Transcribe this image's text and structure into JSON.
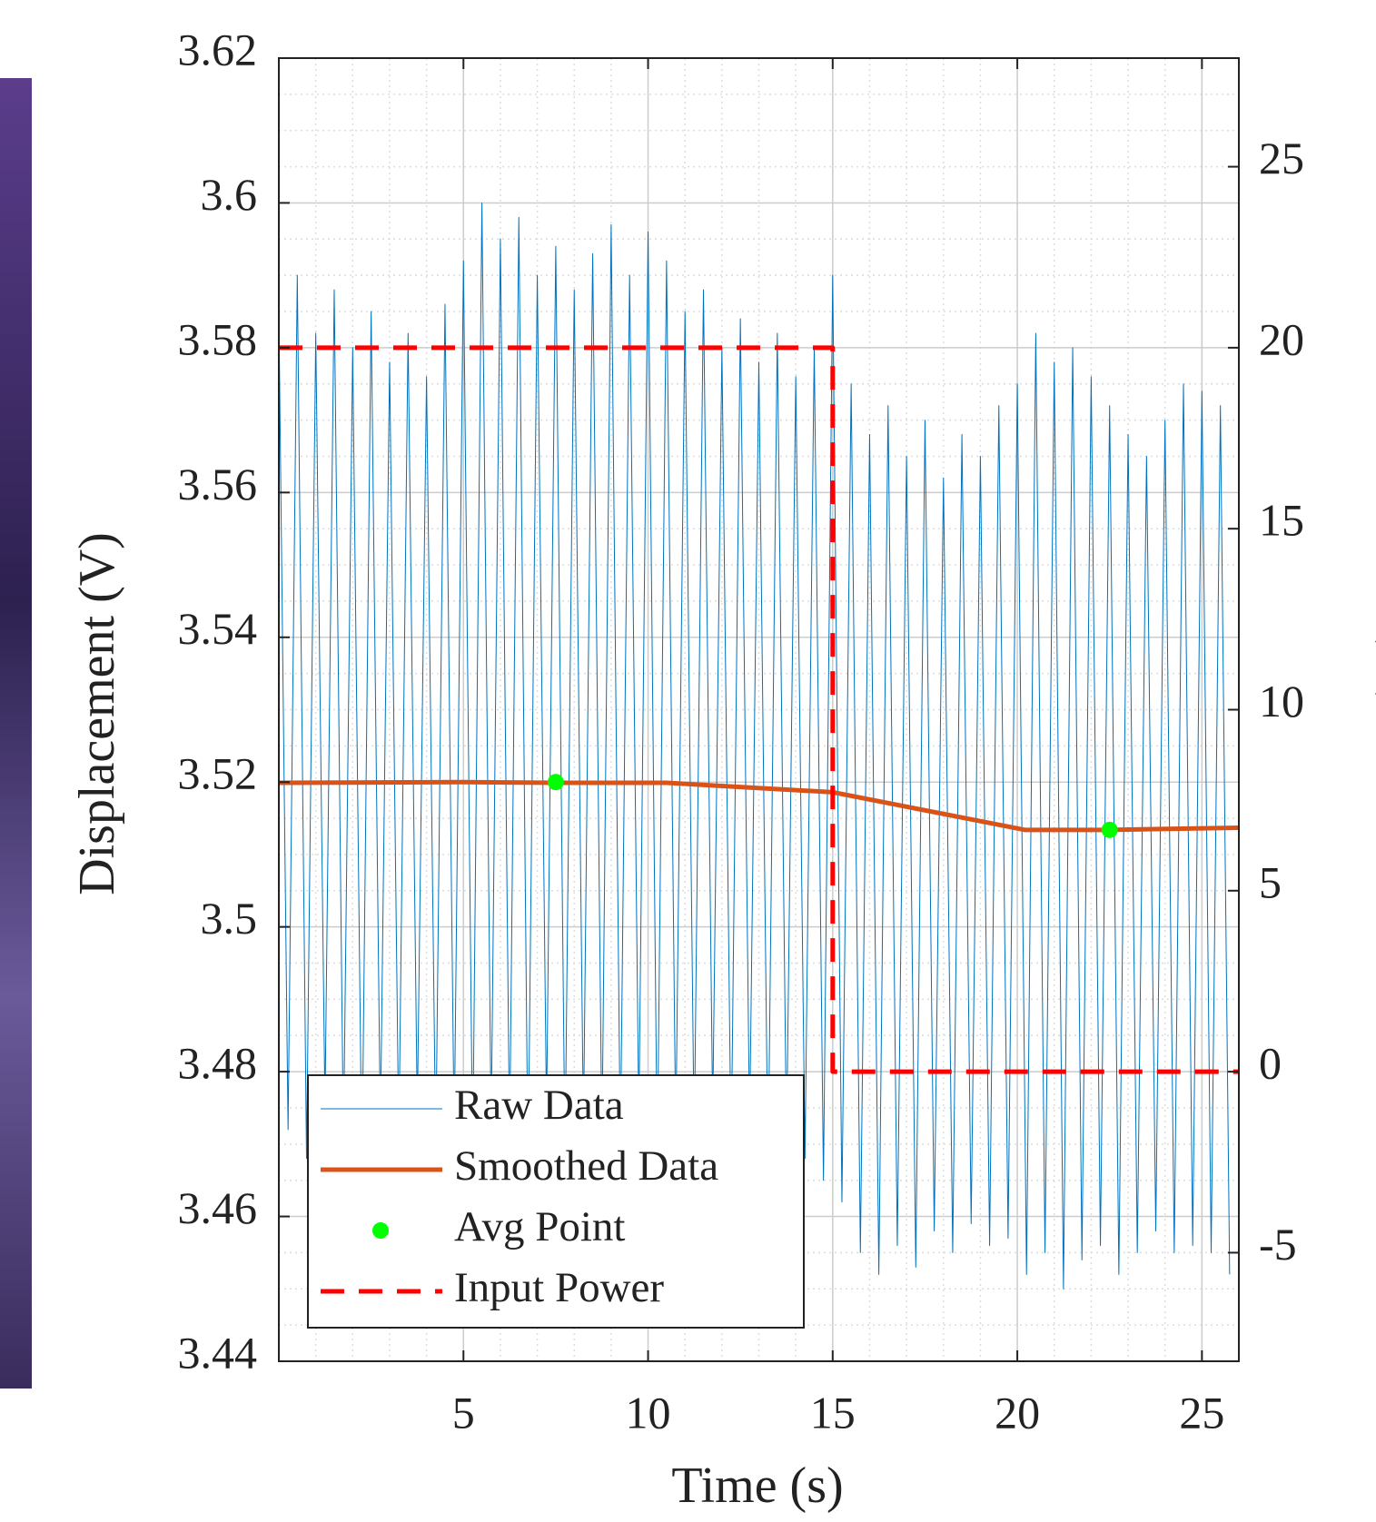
{
  "chart_data": {
    "type": "line",
    "xlabel": "Time (s)",
    "ylabel": "Displacement (V)",
    "y2label": "Input Power (W)",
    "xlim": [
      0,
      26
    ],
    "xticks": [
      5,
      10,
      15,
      20,
      25
    ],
    "ylim": [
      3.44,
      3.62
    ],
    "yticks": [
      3.44,
      3.46,
      3.48,
      3.5,
      3.52,
      3.54,
      3.56,
      3.58,
      3.6,
      3.62
    ],
    "y2lim": [
      -8,
      28
    ],
    "y2ticks": [
      -5,
      0,
      5,
      10,
      15,
      20,
      25
    ],
    "grid": true,
    "minor_grid": true,
    "legend": "lower left",
    "series": [
      {
        "name": "Raw Data",
        "color": "#0072bd",
        "line_width": 1,
        "x": [
          0,
          0.25,
          0.5,
          0.75,
          1,
          1.25,
          1.5,
          1.75,
          2,
          2.25,
          2.5,
          2.75,
          3,
          3.25,
          3.5,
          3.75,
          4,
          4.25,
          4.5,
          4.75,
          5,
          5.25,
          5.5,
          5.75,
          6,
          6.25,
          6.5,
          6.75,
          7,
          7.25,
          7.5,
          7.75,
          8,
          8.25,
          8.5,
          8.75,
          9,
          9.25,
          9.5,
          9.75,
          10,
          10.25,
          10.5,
          10.75,
          11,
          11.25,
          11.5,
          11.75,
          12,
          12.25,
          12.5,
          12.75,
          13,
          13.25,
          13.5,
          13.75,
          14,
          14.25,
          14.5,
          14.75,
          15,
          15.25,
          15.5,
          15.75,
          16,
          16.25,
          16.5,
          16.75,
          17,
          17.25,
          17.5,
          17.75,
          18,
          18.25,
          18.5,
          18.75,
          19,
          19.25,
          19.5,
          19.75,
          20,
          20.25,
          20.5,
          20.75,
          21,
          21.25,
          21.5,
          21.75,
          22,
          22.25,
          22.5,
          22.75,
          23,
          23.25,
          23.5,
          23.75,
          24,
          24.25,
          24.5,
          24.75,
          25,
          25.25,
          25.5,
          25.75
        ],
        "values": [
          3.585,
          3.472,
          3.59,
          3.468,
          3.582,
          3.475,
          3.588,
          3.47,
          3.58,
          3.466,
          3.585,
          3.472,
          3.578,
          3.47,
          3.582,
          3.474,
          3.576,
          3.469,
          3.586,
          3.471,
          3.592,
          3.468,
          3.6,
          3.472,
          3.595,
          3.47,
          3.598,
          3.466,
          3.59,
          3.474,
          3.594,
          3.468,
          3.588,
          3.472,
          3.593,
          3.47,
          3.597,
          3.469,
          3.59,
          3.473,
          3.596,
          3.467,
          3.592,
          3.471,
          3.585,
          3.47,
          3.588,
          3.474,
          3.58,
          3.468,
          3.584,
          3.472,
          3.578,
          3.466,
          3.582,
          3.47,
          3.576,
          3.468,
          3.58,
          3.465,
          3.59,
          3.462,
          3.575,
          3.455,
          3.568,
          3.452,
          3.572,
          3.456,
          3.565,
          3.453,
          3.57,
          3.458,
          3.562,
          3.455,
          3.568,
          3.459,
          3.565,
          3.456,
          3.572,
          3.457,
          3.575,
          3.452,
          3.582,
          3.455,
          3.578,
          3.45,
          3.58,
          3.454,
          3.576,
          3.456,
          3.572,
          3.452,
          3.568,
          3.455,
          3.565,
          3.458,
          3.57,
          3.455,
          3.575,
          3.456,
          3.574,
          3.455,
          3.572,
          3.452
        ]
      },
      {
        "name": "Smoothed Data",
        "color": "#d95319",
        "line_width": 5,
        "x": [
          0,
          5,
          7.5,
          10.5,
          15,
          20.2,
          22.5,
          26
        ],
        "values": [
          3.5199,
          3.52,
          3.5199,
          3.5199,
          3.5186,
          3.5134,
          3.5134,
          3.5137
        ]
      },
      {
        "name": "Avg Point",
        "color": "#00ff00",
        "marker": "dot",
        "x": [
          7.5,
          22.5
        ],
        "values": [
          3.52,
          3.5134
        ]
      },
      {
        "name": "Input Power",
        "color": "#ff0000",
        "line_width": 5,
        "dash": true,
        "axis": "y2",
        "x": [
          0,
          15,
          15,
          26
        ],
        "values": [
          20,
          20,
          0,
          0
        ]
      }
    ]
  }
}
